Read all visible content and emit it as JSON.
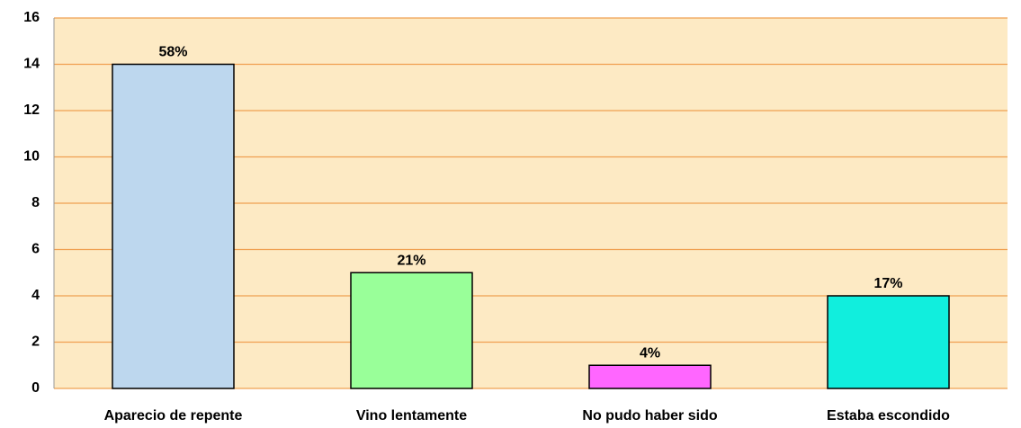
{
  "chart_data": {
    "type": "bar",
    "categories": [
      "Aparecio de repente",
      "Vino lentamente",
      "No pudo haber sido",
      "Estaba escondido"
    ],
    "values": [
      14,
      5,
      1,
      4
    ],
    "value_labels": [
      "58%",
      "21%",
      "4%",
      "17%"
    ],
    "colors": [
      "#bdd7ee",
      "#99ff99",
      "#ff66ff",
      "#11eedd"
    ],
    "ylim": [
      0,
      16
    ],
    "yticks": [
      0,
      2,
      4,
      6,
      8,
      10,
      12,
      14,
      16
    ],
    "grid": true
  }
}
